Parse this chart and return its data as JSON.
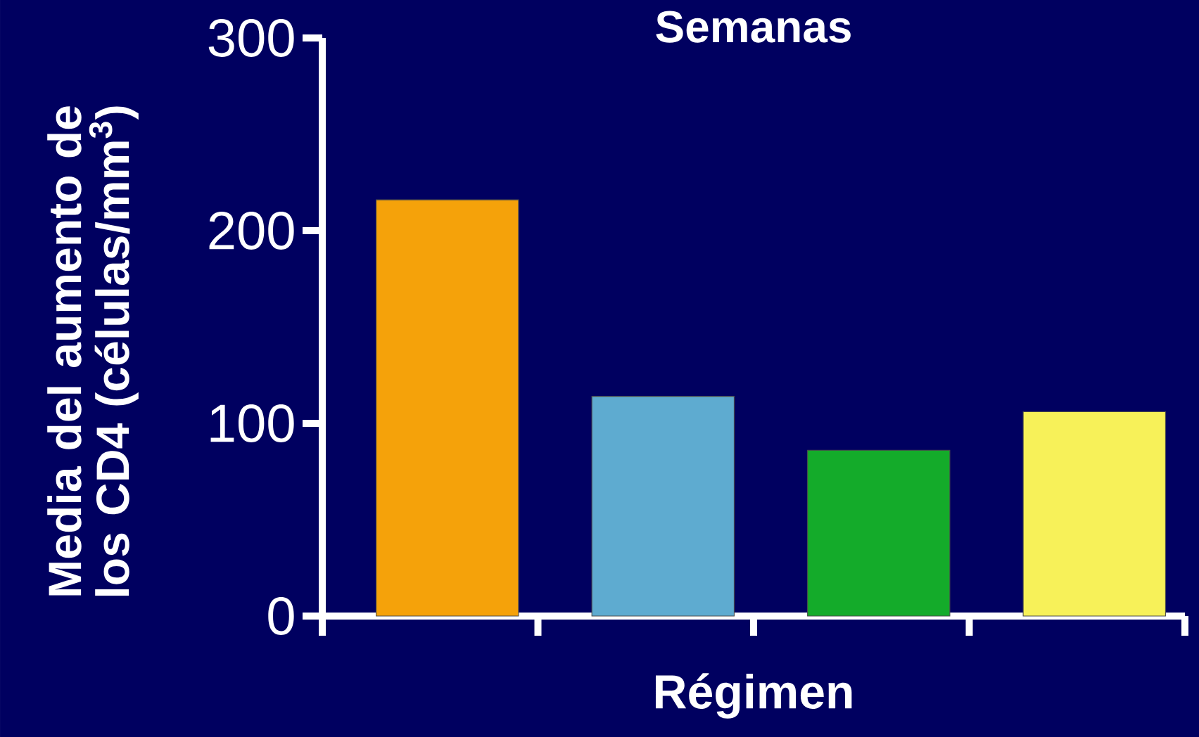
{
  "chart_data": {
    "type": "bar",
    "title": "Semanas",
    "xlabel": "Régimen",
    "ylabel": "Media del aumento de los CD4 (células/mm$^{3}$)",
    "categories": [
      null,
      null,
      null,
      null
    ],
    "values": [
      216,
      114,
      86,
      106
    ],
    "colors": [
      "#f5a20a",
      "#5eabd0",
      "#14ab2a",
      "#f7f159"
    ],
    "ylim": [
      0,
      300
    ],
    "yticks": [
      0,
      100,
      200,
      300
    ],
    "grid": false,
    "tick_labels": "y"
  }
}
